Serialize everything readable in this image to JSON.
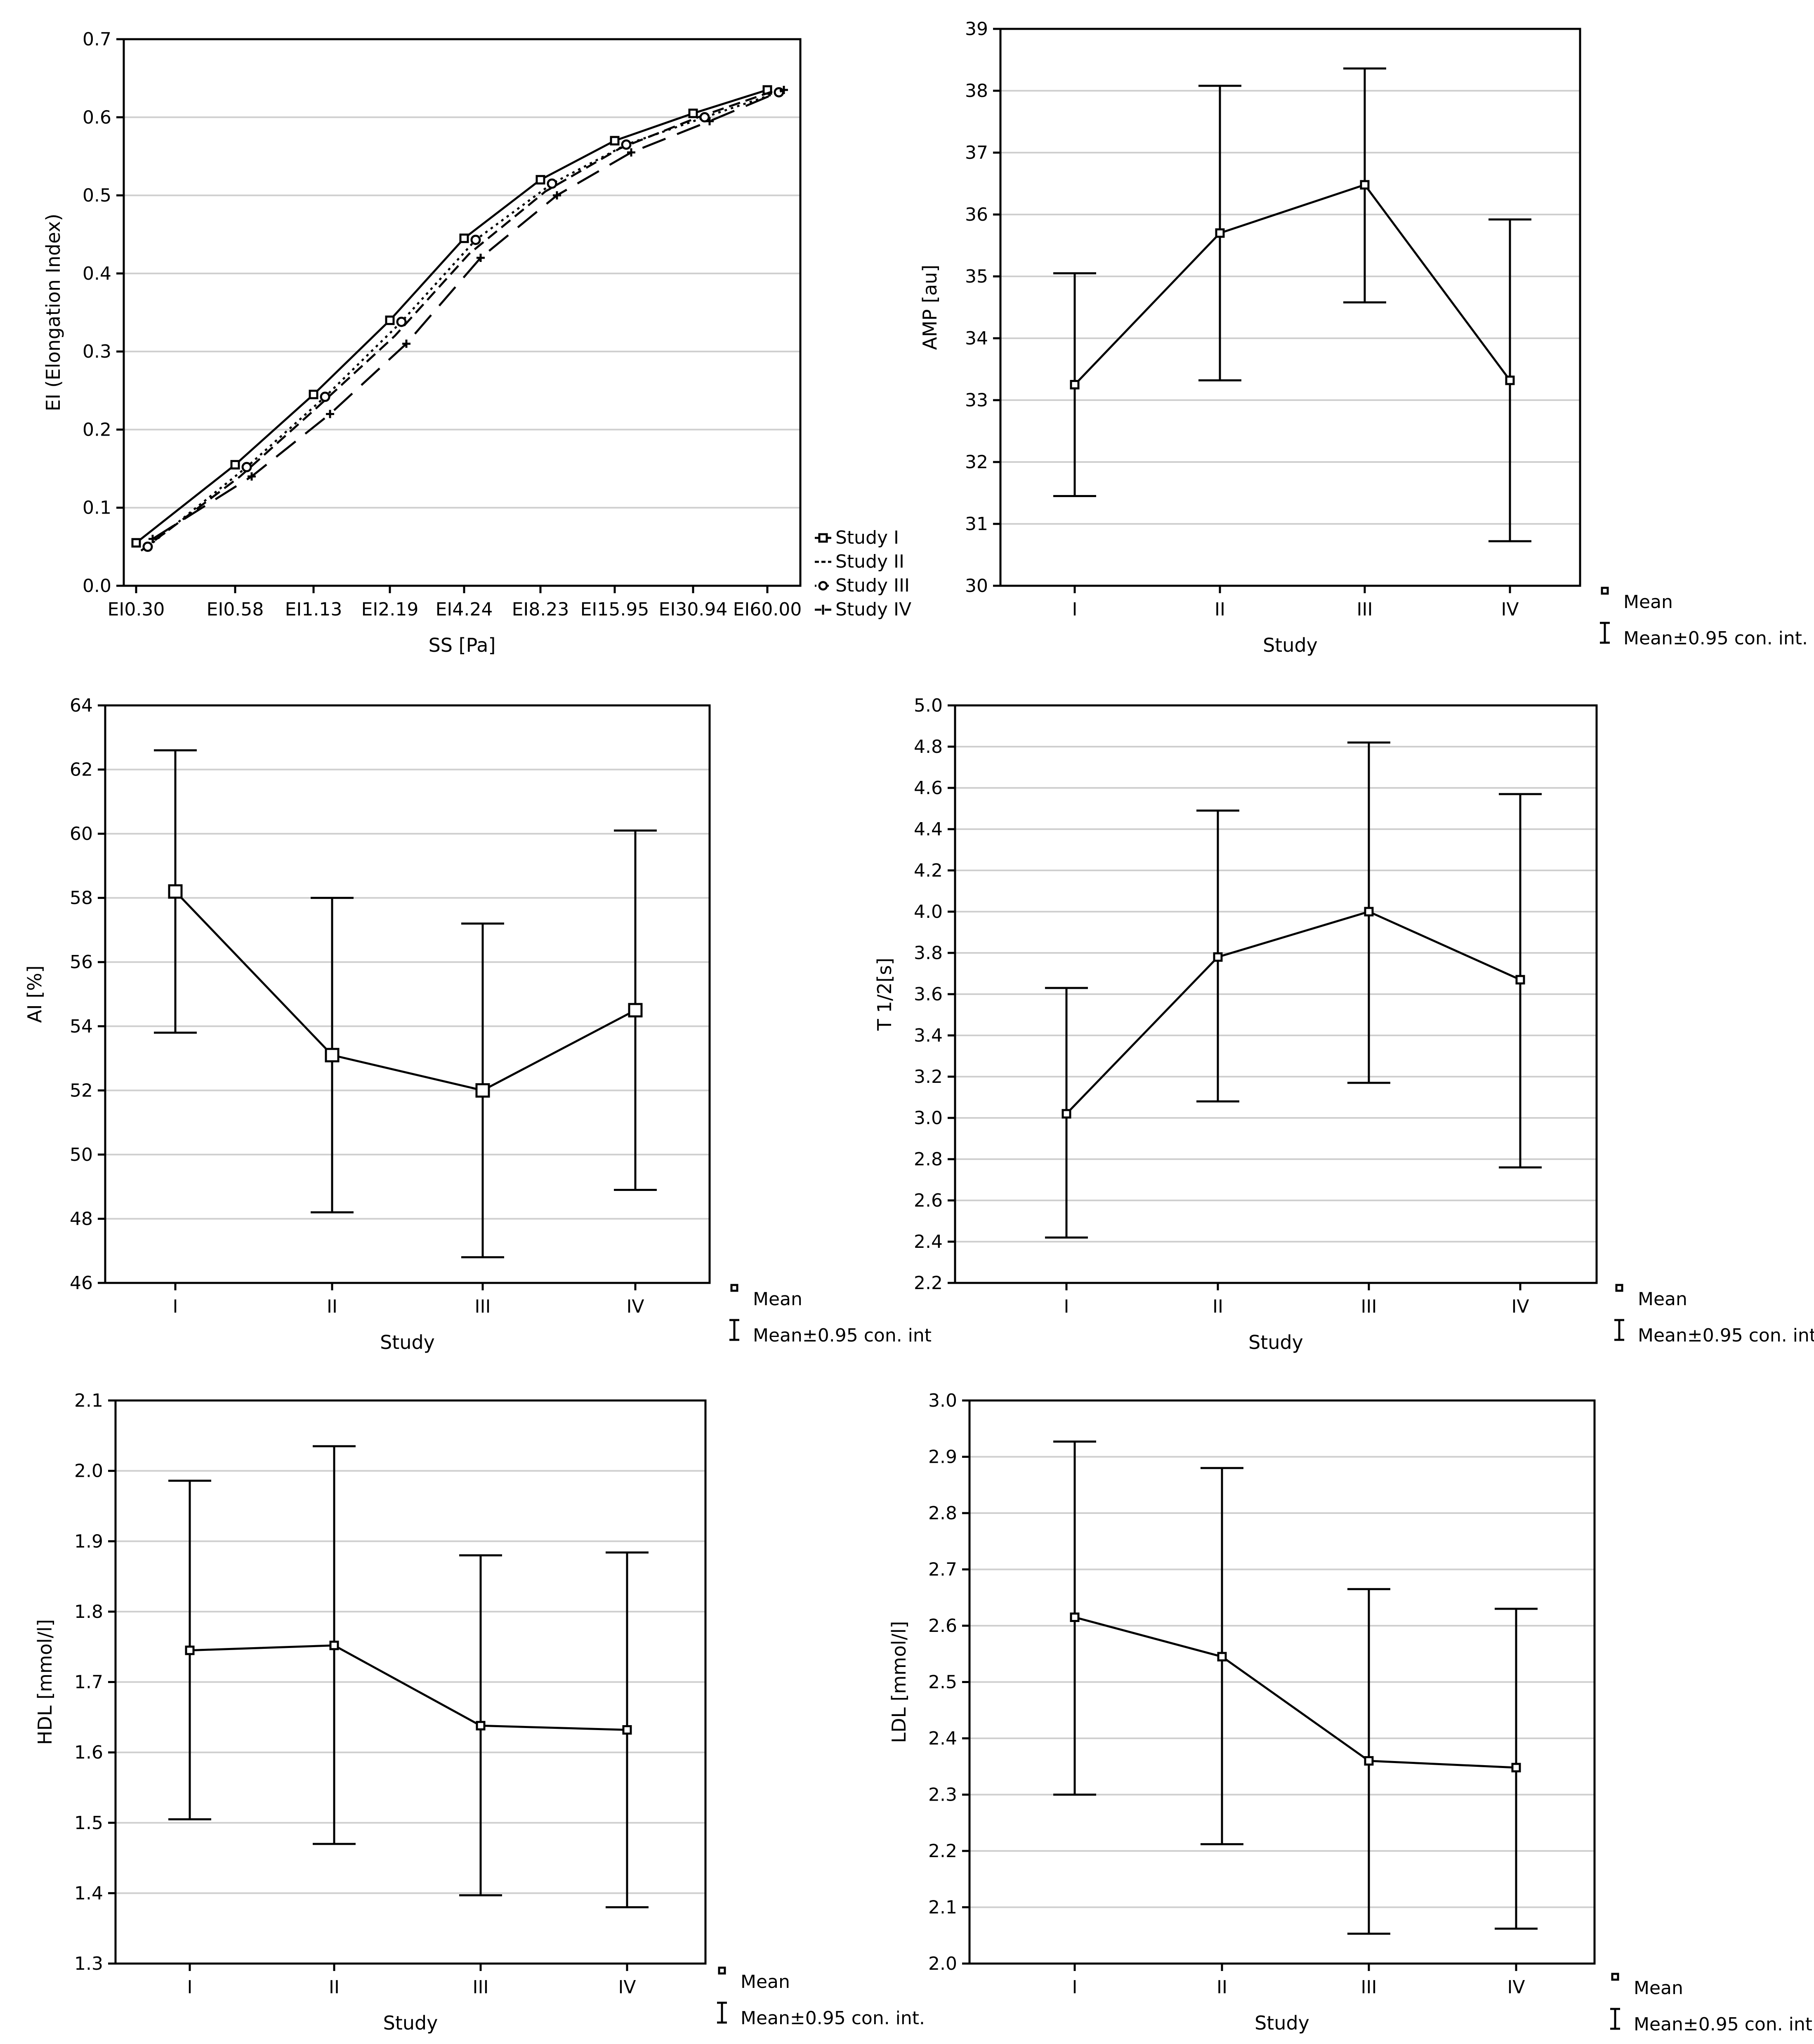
{
  "chart_data": [
    {
      "type": "line",
      "title": "",
      "xlabel": "SS [Pa]",
      "ylabel": "EI (Elongation Index)",
      "categories": [
        "EI0.30",
        "EI0.58",
        "EI1.13",
        "EI2.19",
        "EI4.24",
        "EI8.23",
        "EI15.95",
        "EI30.94",
        "EI60.00"
      ],
      "ylim": [
        0,
        0.7
      ],
      "yticks": [
        "0.0",
        "0.1",
        "0.2",
        "0.3",
        "0.4",
        "0.5",
        "0.6",
        "0.7"
      ],
      "grid": true,
      "legend_position": "right",
      "series": [
        {
          "name": "Study I",
          "style": "solid",
          "marker": "square",
          "values": [
            0.055,
            0.155,
            0.245,
            0.34,
            0.445,
            0.52,
            0.57,
            0.605,
            0.635
          ]
        },
        {
          "name": "Study II",
          "style": "dashed",
          "marker": "none",
          "values": [
            0.045,
            0.14,
            0.23,
            0.32,
            0.425,
            0.505,
            0.56,
            0.6,
            0.633
          ]
        },
        {
          "name": "Study III",
          "style": "dotted",
          "marker": "circle",
          "values": [
            0.05,
            0.152,
            0.242,
            0.338,
            0.443,
            0.515,
            0.565,
            0.6,
            0.632
          ]
        },
        {
          "name": "Study IV",
          "style": "longdash",
          "marker": "plus",
          "values": [
            0.06,
            0.14,
            0.22,
            0.31,
            0.42,
            0.5,
            0.555,
            0.595,
            0.635
          ]
        }
      ]
    },
    {
      "type": "errorbar",
      "title": "",
      "xlabel": "Study",
      "ylabel": "AMP [au]",
      "categories": [
        "I",
        "II",
        "III",
        "IV"
      ],
      "ylim": [
        30,
        39
      ],
      "yticks": [
        "30",
        "31",
        "32",
        "33",
        "34",
        "35",
        "36",
        "37",
        "38",
        "39"
      ],
      "grid": true,
      "means": [
        33.25,
        35.7,
        36.48,
        33.32
      ],
      "ci_low": [
        31.45,
        33.32,
        34.58,
        30.72
      ],
      "ci_high": [
        35.05,
        38.08,
        38.36,
        35.92
      ],
      "legend": [
        "Mean",
        "Mean±0.95 con. int."
      ]
    },
    {
      "type": "errorbar",
      "title": "",
      "xlabel": "Study",
      "ylabel": "AI [%]",
      "categories": [
        "I",
        "II",
        "III",
        "IV"
      ],
      "ylim": [
        46,
        64
      ],
      "yticks": [
        "46",
        "48",
        "50",
        "52",
        "54",
        "56",
        "58",
        "60",
        "62",
        "64"
      ],
      "grid": true,
      "means": [
        58.2,
        53.1,
        52.0,
        54.5
      ],
      "ci_low": [
        53.8,
        48.2,
        46.8,
        48.9
      ],
      "ci_high": [
        62.6,
        58.0,
        57.2,
        60.1
      ],
      "legend": [
        "Mean",
        "Mean±0.95 con. int"
      ]
    },
    {
      "type": "errorbar",
      "title": "",
      "xlabel": "Study",
      "ylabel": "T 1/2[s]",
      "categories": [
        "I",
        "II",
        "III",
        "IV"
      ],
      "ylim": [
        2.2,
        5.0
      ],
      "yticks": [
        "2.2",
        "2.4",
        "2.6",
        "2.8",
        "3.0",
        "3.2",
        "3.4",
        "3.6",
        "3.8",
        "4.0",
        "4.2",
        "4.4",
        "4.6",
        "4.8",
        "5.0"
      ],
      "grid": true,
      "means": [
        3.02,
        3.78,
        4.0,
        3.67
      ],
      "ci_low": [
        2.42,
        3.08,
        3.17,
        2.76
      ],
      "ci_high": [
        3.63,
        4.49,
        4.82,
        4.57
      ],
      "legend": [
        "Mean",
        "Mean±0.95 con. int."
      ]
    },
    {
      "type": "errorbar",
      "title": "",
      "xlabel": "Study",
      "ylabel": "HDL [mmol/l]",
      "categories": [
        "I",
        "II",
        "III",
        "IV"
      ],
      "ylim": [
        1.3,
        2.1
      ],
      "yticks": [
        "1.3",
        "1.4",
        "1.5",
        "1.6",
        "1.7",
        "1.8",
        "1.9",
        "2.0",
        "2.1"
      ],
      "grid": true,
      "means": [
        1.745,
        1.752,
        1.638,
        1.632
      ],
      "ci_low": [
        1.505,
        1.47,
        1.397,
        1.38
      ],
      "ci_high": [
        1.986,
        2.035,
        1.88,
        1.884
      ],
      "legend": [
        "Mean",
        "Mean±0.95 con. int."
      ]
    },
    {
      "type": "errorbar",
      "title": "",
      "xlabel": "Study",
      "ylabel": "LDL [mmol/l]",
      "categories": [
        "I",
        "II",
        "III",
        "IV"
      ],
      "ylim": [
        2.0,
        3.0
      ],
      "yticks": [
        "2.0",
        "2.1",
        "2.2",
        "2.3",
        "2.4",
        "2.5",
        "2.6",
        "2.7",
        "2.8",
        "2.9",
        "3.0"
      ],
      "grid": true,
      "means": [
        2.615,
        2.545,
        2.36,
        2.348
      ],
      "ci_low": [
        2.3,
        2.212,
        2.053,
        2.062
      ],
      "ci_high": [
        2.927,
        2.88,
        2.665,
        2.63
      ],
      "legend": [
        "Mean",
        "Mean±0.95 con. int"
      ]
    }
  ]
}
